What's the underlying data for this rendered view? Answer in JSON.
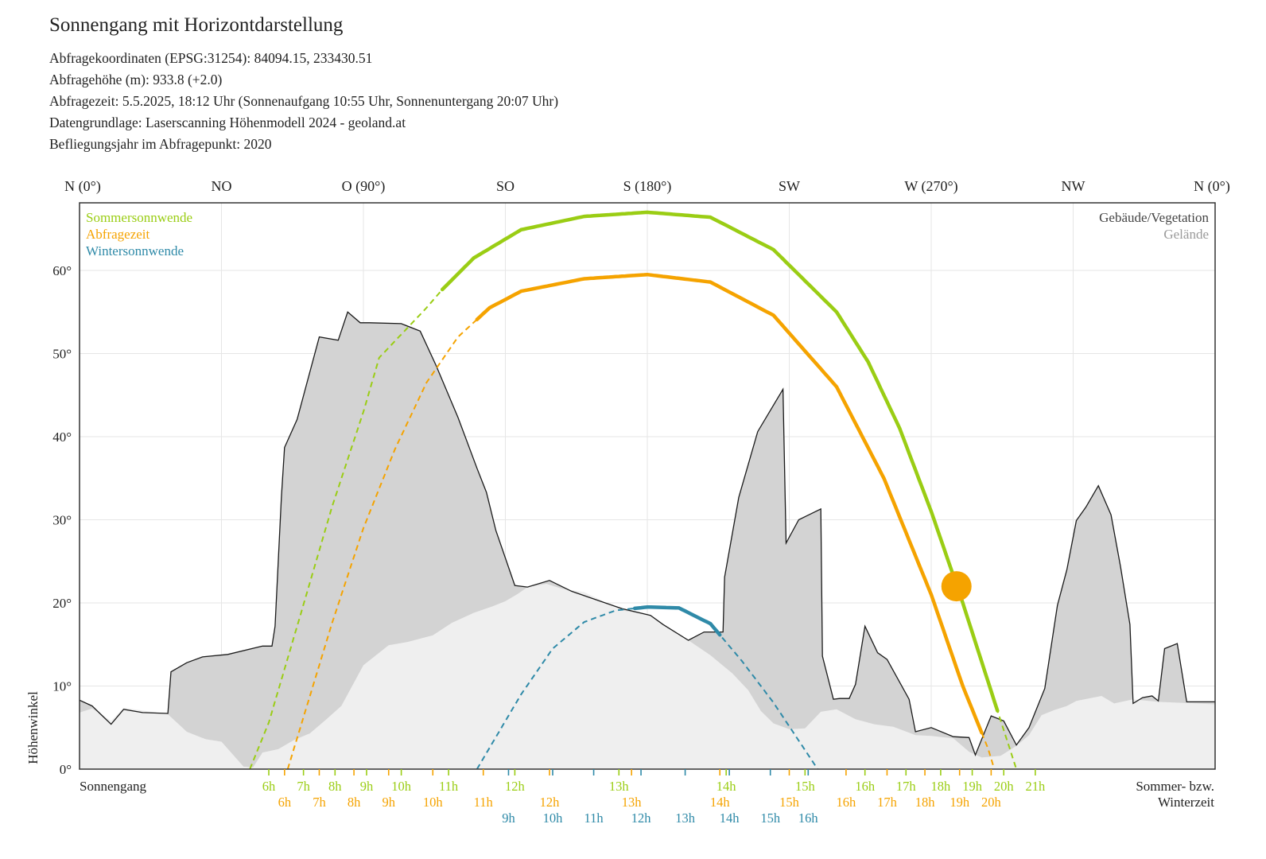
{
  "header": {
    "title": "Sonnengang mit Horizontdarstellung",
    "lines": [
      "Abfragekoordinaten (EPSG:31254): 84094.15, 233430.51",
      "Abfragehöhe (m): 933.8 (+2.0)",
      "Abfragezeit: 5.5.2025, 18:12 Uhr (Sonnenaufgang 10:55 Uhr,  Sonnenuntergang 20:07 Uhr)",
      "Datengrundlage: Laserscanning Höhenmodell 2024 - geoland.at",
      "Befliegungsjahr im Abfragepunkt: 2020"
    ]
  },
  "colors": {
    "summer": "#9acd14",
    "query": "#f5a300",
    "winter": "#2f8aa8",
    "buildings_fill": "#d3d3d3",
    "terrain_fill": "#efefef",
    "grid": "#e6e6e6"
  },
  "chart_data": {
    "type": "line",
    "title": "",
    "xlabel": "",
    "ylabel": "Höhenwinkel",
    "xlim": [
      0,
      360
    ],
    "ylim": [
      0,
      68
    ],
    "grid": true,
    "top_labels": [
      {
        "az": 0,
        "label": "N (0°)"
      },
      {
        "az": 45,
        "label": "NO"
      },
      {
        "az": 90,
        "label": "O (90°)"
      },
      {
        "az": 135,
        "label": "SO"
      },
      {
        "az": 180,
        "label": "S (180°)"
      },
      {
        "az": 225,
        "label": "SW"
      },
      {
        "az": 270,
        "label": "W (270°)"
      },
      {
        "az": 315,
        "label": "NW"
      },
      {
        "az": 360,
        "label": "N (0°)"
      }
    ],
    "y_ticks": [
      {
        "v": 0,
        "label": "0°"
      },
      {
        "v": 10,
        "label": "10°"
      },
      {
        "v": 20,
        "label": "20°"
      },
      {
        "v": 30,
        "label": "30°"
      },
      {
        "v": 40,
        "label": "40°"
      },
      {
        "v": 50,
        "label": "50°"
      },
      {
        "v": 60,
        "label": "60°"
      }
    ],
    "legend_left": [
      "Sommersonnwende",
      "Abfragezeit",
      "Wintersonnwende"
    ],
    "legend_right": [
      "Gebäude/Vegetation",
      "Gelände"
    ],
    "bottom_left": "Sonnengang",
    "bottom_right": [
      "Sommer- bzw.",
      "Winterzeit"
    ],
    "buildings_horizon": [
      [
        0,
        8.3
      ],
      [
        4,
        7.6
      ],
      [
        10,
        5.4
      ],
      [
        14,
        7.2
      ],
      [
        20,
        6.8
      ],
      [
        28,
        6.7
      ],
      [
        29,
        11.7
      ],
      [
        34,
        12.8
      ],
      [
        39,
        13.5
      ],
      [
        47,
        13.8
      ],
      [
        58,
        14.8
      ],
      [
        61,
        14.8
      ],
      [
        62,
        17.2
      ],
      [
        64,
        32.8
      ],
      [
        65,
        38.7
      ],
      [
        69,
        42.1
      ],
      [
        76,
        52
      ],
      [
        82,
        51.6
      ],
      [
        85,
        55
      ],
      [
        89,
        53.7
      ],
      [
        92,
        53.7
      ],
      [
        102,
        53.6
      ],
      [
        108,
        52.7
      ],
      [
        113,
        48.6
      ],
      [
        120,
        42.3
      ],
      [
        126,
        36.2
      ],
      [
        129,
        33.3
      ],
      [
        132,
        28.7
      ],
      [
        138,
        22.1
      ],
      [
        142,
        21.9
      ],
      [
        149,
        22.7
      ],
      [
        156,
        21.4
      ],
      [
        172,
        19.3
      ],
      [
        181,
        18.5
      ],
      [
        185,
        17.4
      ],
      [
        193,
        15.5
      ],
      [
        198,
        16.5
      ],
      [
        204,
        16.5
      ],
      [
        204.5,
        23.1
      ],
      [
        209,
        32.7
      ],
      [
        215,
        40.6
      ],
      [
        223,
        45.7
      ],
      [
        224,
        27.2
      ],
      [
        228,
        30
      ],
      [
        235,
        31.3
      ],
      [
        235.5,
        13.6
      ],
      [
        239,
        8.4
      ],
      [
        241,
        8.5
      ],
      [
        244,
        8.5
      ],
      [
        246,
        10.2
      ],
      [
        249,
        17.2
      ],
      [
        253,
        14
      ],
      [
        256,
        13.2
      ],
      [
        263,
        8.4
      ],
      [
        265,
        4.5
      ],
      [
        270,
        5
      ],
      [
        277,
        3.9
      ],
      [
        282,
        3.8
      ],
      [
        284,
        1.7
      ],
      [
        289,
        6.4
      ],
      [
        293,
        5.8
      ],
      [
        297,
        2.9
      ],
      [
        301,
        5
      ],
      [
        306,
        9.7
      ],
      [
        310,
        19.7
      ],
      [
        313,
        24
      ],
      [
        316,
        29.9
      ],
      [
        319,
        31.5
      ],
      [
        323,
        34.1
      ],
      [
        327,
        30.6
      ],
      [
        330,
        24.4
      ],
      [
        333,
        17.4
      ],
      [
        334,
        7.9
      ],
      [
        337,
        8.6
      ],
      [
        340,
        8.8
      ],
      [
        342,
        8.2
      ],
      [
        344,
        14.5
      ],
      [
        348,
        15.1
      ],
      [
        351,
        8.1
      ],
      [
        360,
        8.1
      ]
    ],
    "terrain_horizon": [
      [
        0,
        6.8
      ],
      [
        4,
        7.3
      ],
      [
        10,
        5.8
      ],
      [
        14,
        7.4
      ],
      [
        28,
        6.6
      ],
      [
        34,
        4.5
      ],
      [
        40,
        3.6
      ],
      [
        45,
        3.3
      ],
      [
        52,
        0.3
      ],
      [
        55,
        0.2
      ],
      [
        58,
        2
      ],
      [
        63,
        2.4
      ],
      [
        68,
        3.5
      ],
      [
        73,
        4.3
      ],
      [
        78,
        5.9
      ],
      [
        83,
        7.6
      ],
      [
        90,
        12.5
      ],
      [
        98,
        14.9
      ],
      [
        104,
        15.3
      ],
      [
        112,
        16.1
      ],
      [
        118,
        17.6
      ],
      [
        125,
        18.8
      ],
      [
        131,
        19.6
      ],
      [
        135,
        20.2
      ],
      [
        139,
        21.1
      ],
      [
        142,
        21.9
      ],
      [
        148,
        22.3
      ],
      [
        153,
        21.7
      ],
      [
        160,
        21.3
      ],
      [
        172,
        19.1
      ],
      [
        181,
        18.5
      ],
      [
        185,
        17.4
      ],
      [
        193,
        15.5
      ],
      [
        200,
        13.7
      ],
      [
        207,
        11.5
      ],
      [
        212,
        9.5
      ],
      [
        216,
        7
      ],
      [
        220,
        5.5
      ],
      [
        225,
        4.8
      ],
      [
        230,
        4.9
      ],
      [
        235,
        6.9
      ],
      [
        240,
        7.2
      ],
      [
        243,
        6.6
      ],
      [
        246,
        6
      ],
      [
        252,
        5.4
      ],
      [
        258,
        5.1
      ],
      [
        265,
        4.1
      ],
      [
        270,
        4
      ],
      [
        277,
        3.7
      ],
      [
        282,
        2.1
      ],
      [
        286,
        1.4
      ],
      [
        292,
        1.6
      ],
      [
        297,
        2.8
      ],
      [
        301,
        4.1
      ],
      [
        305,
        6.5
      ],
      [
        309,
        7.1
      ],
      [
        313,
        7.6
      ],
      [
        316,
        8.2
      ],
      [
        324,
        8.8
      ],
      [
        328,
        7.9
      ],
      [
        334,
        8.4
      ],
      [
        342,
        8.1
      ],
      [
        360,
        7.8
      ]
    ],
    "series": [
      {
        "name": "Sommersonnwende",
        "color": "#9acd14",
        "points": [
          [
            54,
            0
          ],
          [
            60,
            5.6
          ],
          [
            70,
            18.5
          ],
          [
            80,
            31.5
          ],
          [
            90,
            43
          ],
          [
            95,
            49.5
          ],
          [
            110,
            55.5
          ],
          [
            115,
            57.7
          ],
          [
            125,
            61.5
          ],
          [
            140,
            64.9
          ],
          [
            160,
            66.5
          ],
          [
            180,
            67
          ],
          [
            200,
            66.4
          ],
          [
            220,
            62.5
          ],
          [
            240,
            55
          ],
          [
            250,
            49
          ],
          [
            260,
            41
          ],
          [
            270,
            31
          ],
          [
            280,
            20
          ],
          [
            290,
            8.2
          ],
          [
            297,
            0
          ]
        ],
        "visible_from": 115,
        "visible_to": 291
      },
      {
        "name": "Abfragezeit",
        "color": "#f5a300",
        "points": [
          [
            66,
            0
          ],
          [
            80,
            17.5
          ],
          [
            90,
            29
          ],
          [
            100,
            38.5
          ],
          [
            110,
            46.5
          ],
          [
            120,
            52
          ],
          [
            130,
            55.5
          ],
          [
            140,
            57.5
          ],
          [
            160,
            59
          ],
          [
            180,
            59.5
          ],
          [
            200,
            58.6
          ],
          [
            220,
            54.6
          ],
          [
            240,
            46
          ],
          [
            255,
            35
          ],
          [
            270,
            21
          ],
          [
            280,
            10
          ],
          [
            288,
            2.5
          ],
          [
            290,
            0
          ]
        ],
        "visible_from": 126,
        "visible_to": 286
      },
      {
        "name": "Wintersonnwende",
        "color": "#2f8aa8",
        "points": [
          [
            126,
            0
          ],
          [
            140,
            9
          ],
          [
            150,
            14.5
          ],
          [
            160,
            17.7
          ],
          [
            170,
            19.1
          ],
          [
            180,
            19.5
          ],
          [
            190,
            19.4
          ],
          [
            200,
            17.5
          ],
          [
            210,
            13
          ],
          [
            220,
            8
          ],
          [
            234,
            0
          ]
        ],
        "visible_from": 176,
        "visible_to": 203
      }
    ],
    "sun_marker": {
      "az": 278,
      "alt": 22
    },
    "hour_rows": [
      {
        "color": "#9acd14",
        "labels": [
          {
            "az": 60,
            "t": "6h"
          },
          {
            "az": 71,
            "t": "7h"
          },
          {
            "az": 81,
            "t": "8h"
          },
          {
            "az": 91,
            "t": "9h"
          },
          {
            "az": 102,
            "t": "10h"
          },
          {
            "az": 117,
            "t": "11h"
          },
          {
            "az": 138,
            "t": "12h"
          },
          {
            "az": 171,
            "t": "13h"
          },
          {
            "az": 205,
            "t": "14h"
          },
          {
            "az": 230,
            "t": "15h"
          },
          {
            "az": 249,
            "t": "16h"
          },
          {
            "az": 262,
            "t": "17h"
          },
          {
            "az": 273,
            "t": "18h"
          },
          {
            "az": 283,
            "t": "19h"
          },
          {
            "az": 293,
            "t": "20h"
          },
          {
            "az": 303,
            "t": "21h"
          }
        ]
      },
      {
        "color": "#f5a300",
        "labels": [
          {
            "az": 65,
            "t": "6h"
          },
          {
            "az": 76,
            "t": "7h"
          },
          {
            "az": 87,
            "t": "8h"
          },
          {
            "az": 98,
            "t": "9h"
          },
          {
            "az": 112,
            "t": "10h"
          },
          {
            "az": 128,
            "t": "11h"
          },
          {
            "az": 149,
            "t": "12h"
          },
          {
            "az": 175,
            "t": "13h"
          },
          {
            "az": 203,
            "t": "14h"
          },
          {
            "az": 225,
            "t": "15h"
          },
          {
            "az": 243,
            "t": "16h"
          },
          {
            "az": 256,
            "t": "17h"
          },
          {
            "az": 268,
            "t": "18h"
          },
          {
            "az": 279,
            "t": "19h"
          },
          {
            "az": 289,
            "t": "20h"
          }
        ]
      },
      {
        "color": "#2f8aa8",
        "labels": [
          {
            "az": 136,
            "t": "9h"
          },
          {
            "az": 150,
            "t": "10h"
          },
          {
            "az": 163,
            "t": "11h"
          },
          {
            "az": 178,
            "t": "12h"
          },
          {
            "az": 192,
            "t": "13h"
          },
          {
            "az": 206,
            "t": "14h"
          },
          {
            "az": 219,
            "t": "15h"
          },
          {
            "az": 231,
            "t": "16h"
          }
        ]
      }
    ],
    "tick_marks": [
      {
        "az": 60,
        "c": "#9acd14"
      },
      {
        "az": 71,
        "c": "#9acd14"
      },
      {
        "az": 81,
        "c": "#9acd14"
      },
      {
        "az": 91,
        "c": "#9acd14"
      },
      {
        "az": 102,
        "c": "#9acd14"
      },
      {
        "az": 117,
        "c": "#9acd14"
      },
      {
        "az": 138,
        "c": "#9acd14"
      },
      {
        "az": 171,
        "c": "#9acd14"
      },
      {
        "az": 205,
        "c": "#9acd14"
      },
      {
        "az": 230,
        "c": "#9acd14"
      },
      {
        "az": 249,
        "c": "#9acd14"
      },
      {
        "az": 262,
        "c": "#9acd14"
      },
      {
        "az": 273,
        "c": "#9acd14"
      },
      {
        "az": 283,
        "c": "#9acd14"
      },
      {
        "az": 293,
        "c": "#9acd14"
      },
      {
        "az": 303,
        "c": "#9acd14"
      },
      {
        "az": 65,
        "c": "#f5a300"
      },
      {
        "az": 76,
        "c": "#f5a300"
      },
      {
        "az": 87,
        "c": "#f5a300"
      },
      {
        "az": 98,
        "c": "#f5a300"
      },
      {
        "az": 112,
        "c": "#f5a300"
      },
      {
        "az": 128,
        "c": "#f5a300"
      },
      {
        "az": 149,
        "c": "#f5a300"
      },
      {
        "az": 175,
        "c": "#f5a300"
      },
      {
        "az": 203,
        "c": "#f5a300"
      },
      {
        "az": 225,
        "c": "#f5a300"
      },
      {
        "az": 243,
        "c": "#f5a300"
      },
      {
        "az": 256,
        "c": "#f5a300"
      },
      {
        "az": 268,
        "c": "#f5a300"
      },
      {
        "az": 279,
        "c": "#f5a300"
      },
      {
        "az": 289,
        "c": "#f5a300"
      },
      {
        "az": 136,
        "c": "#2f8aa8"
      },
      {
        "az": 150,
        "c": "#2f8aa8"
      },
      {
        "az": 163,
        "c": "#2f8aa8"
      },
      {
        "az": 178,
        "c": "#2f8aa8"
      },
      {
        "az": 192,
        "c": "#2f8aa8"
      },
      {
        "az": 206,
        "c": "#2f8aa8"
      },
      {
        "az": 219,
        "c": "#2f8aa8"
      },
      {
        "az": 231,
        "c": "#2f8aa8"
      }
    ]
  }
}
